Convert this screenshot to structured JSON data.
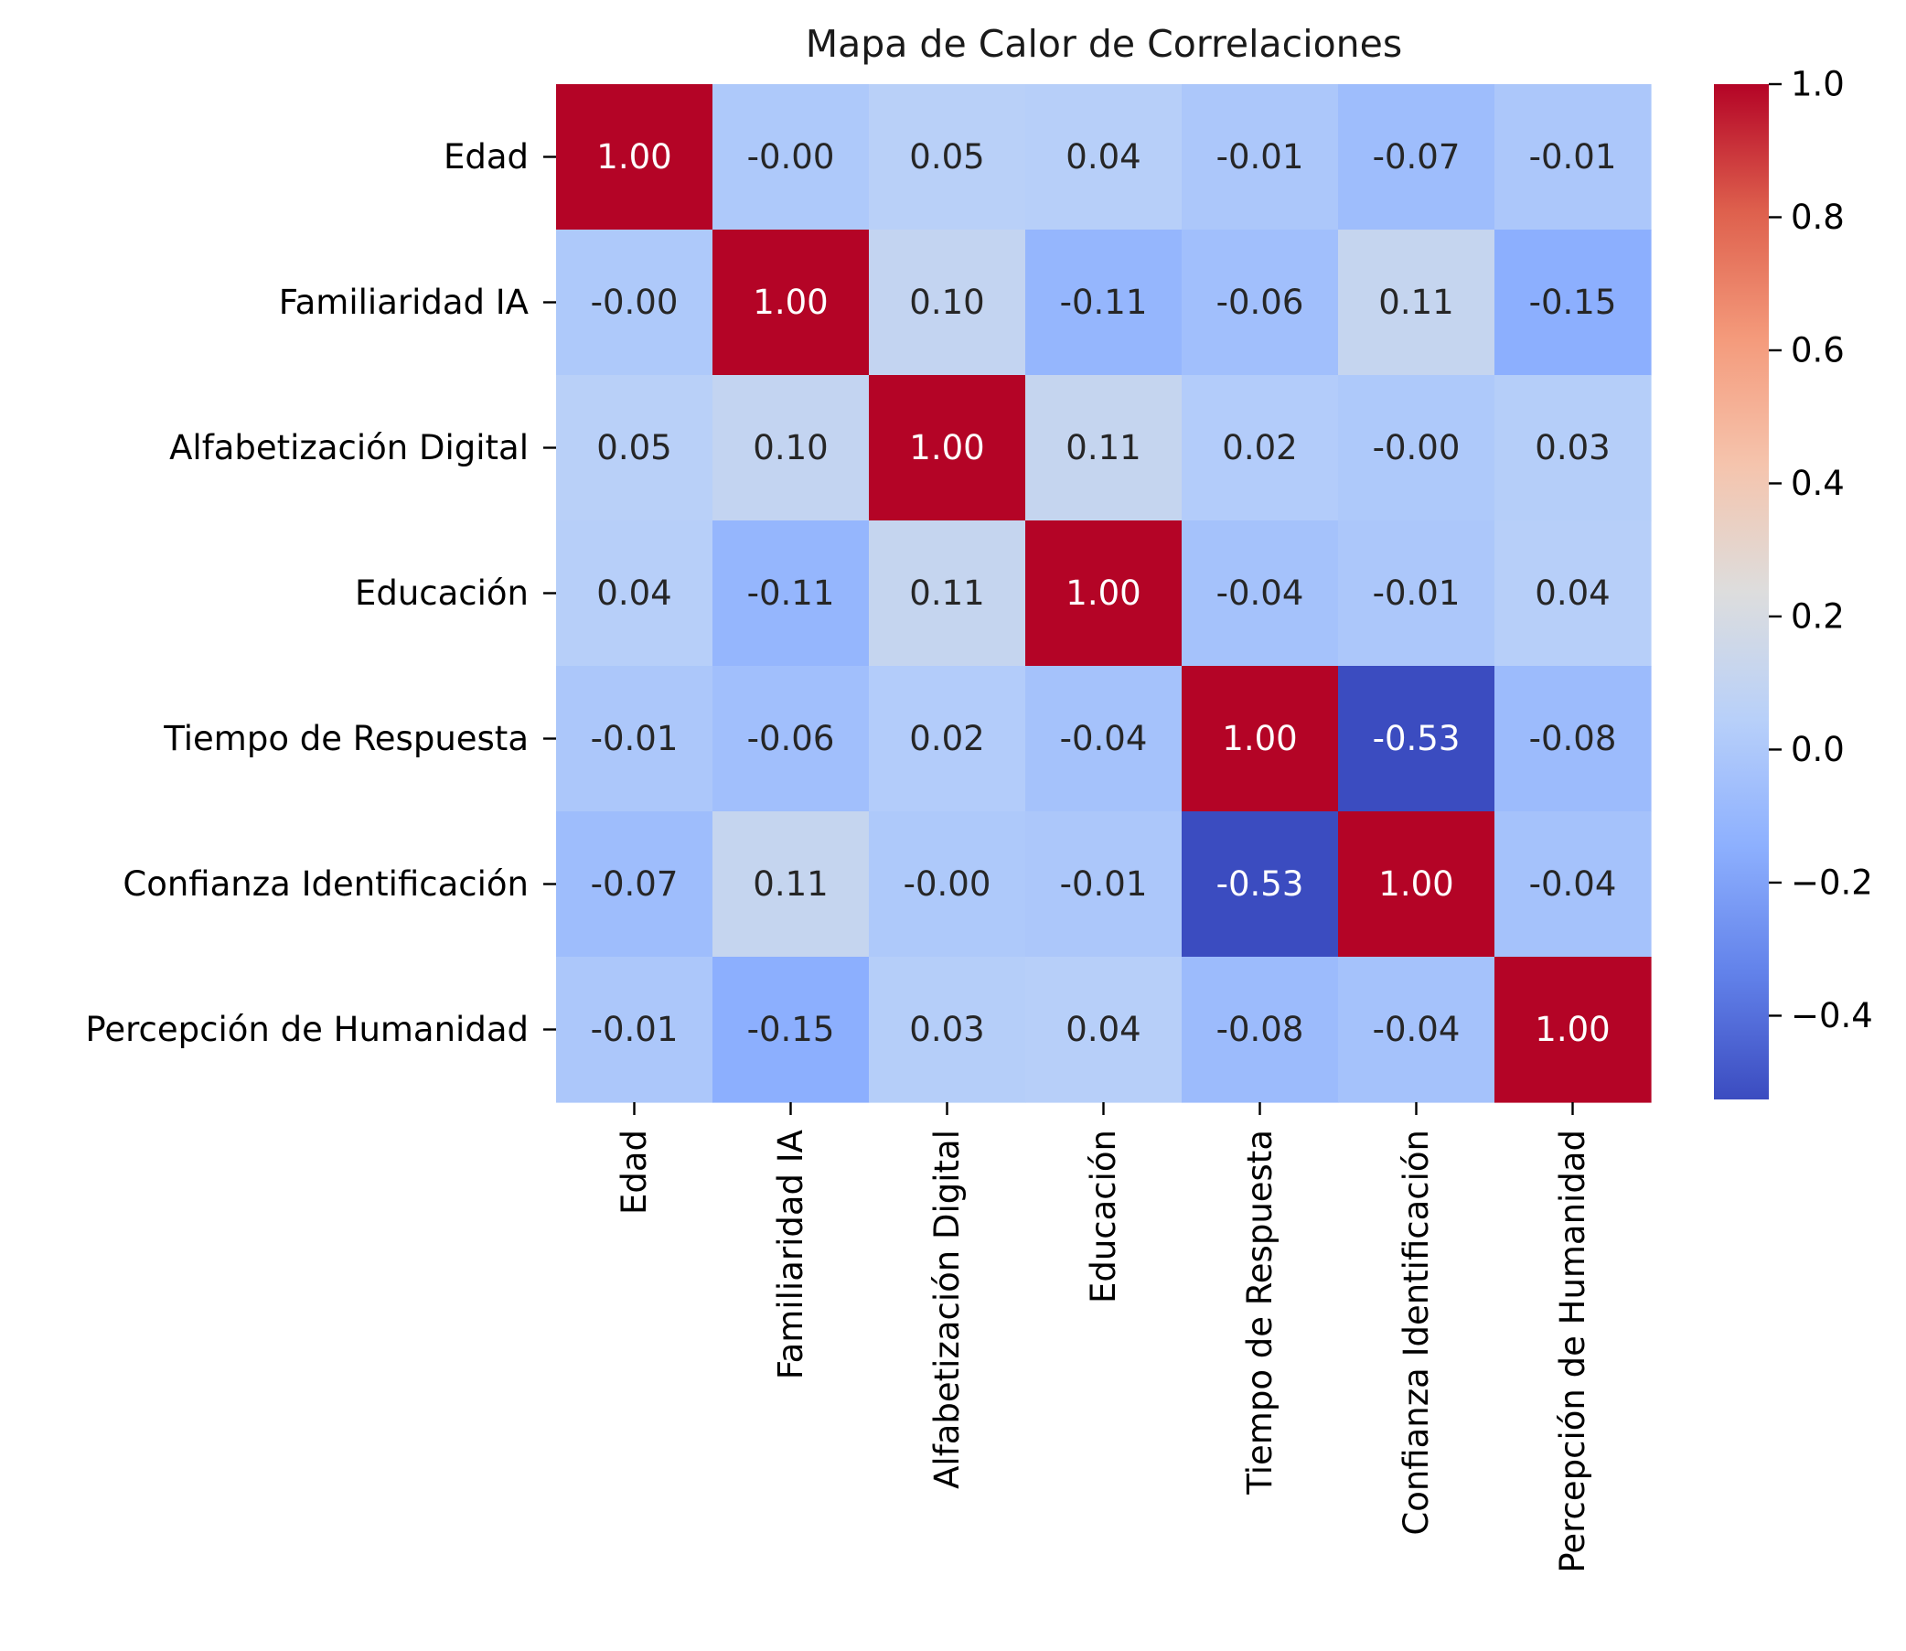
{
  "chart_data": {
    "type": "heatmap",
    "title": "Mapa de Calor de Correlaciones",
    "xlabel": "",
    "ylabel": "",
    "categories": [
      "Edad",
      "Familiaridad IA",
      "Alfabetización Digital",
      "Educación",
      "Tiempo de Respuesta",
      "Confianza Identificación",
      "Percepción de Humanidad"
    ],
    "values": [
      [
        1.0,
        -0.0,
        0.05,
        0.04,
        -0.01,
        -0.07,
        -0.01
      ],
      [
        -0.0,
        1.0,
        0.1,
        -0.11,
        -0.06,
        0.11,
        -0.15
      ],
      [
        0.05,
        0.1,
        1.0,
        0.11,
        0.02,
        -0.0,
        0.03
      ],
      [
        0.04,
        -0.11,
        0.11,
        1.0,
        -0.04,
        -0.01,
        0.04
      ],
      [
        -0.01,
        -0.06,
        0.02,
        -0.04,
        1.0,
        -0.53,
        -0.08
      ],
      [
        -0.07,
        0.11,
        -0.0,
        -0.01,
        -0.53,
        1.0,
        -0.04
      ],
      [
        -0.01,
        -0.15,
        0.03,
        0.04,
        -0.08,
        -0.04,
        1.0
      ]
    ],
    "cell_labels": [
      [
        "1.00",
        "-0.00",
        "0.05",
        "0.04",
        "-0.01",
        "-0.07",
        "-0.01"
      ],
      [
        "-0.00",
        "1.00",
        "0.10",
        "-0.11",
        "-0.06",
        "0.11",
        "-0.15"
      ],
      [
        "0.05",
        "0.10",
        "1.00",
        "0.11",
        "0.02",
        "-0.00",
        "0.03"
      ],
      [
        "0.04",
        "-0.11",
        "0.11",
        "1.00",
        "-0.04",
        "-0.01",
        "0.04"
      ],
      [
        "-0.01",
        "-0.06",
        "0.02",
        "-0.04",
        "1.00",
        "-0.53",
        "-0.08"
      ],
      [
        "-0.07",
        "0.11",
        "-0.00",
        "-0.01",
        "-0.53",
        "1.00",
        "-0.04"
      ],
      [
        "-0.01",
        "-0.15",
        "0.03",
        "0.04",
        "-0.08",
        "-0.04",
        "1.00"
      ]
    ],
    "colormap": "coolwarm",
    "colorbar": {
      "min": -0.53,
      "max": 1.0,
      "ticks": [
        1.0,
        0.8,
        0.6,
        0.4,
        0.2,
        0.0,
        -0.2,
        -0.4
      ],
      "tick_labels": [
        "1.0",
        "0.8",
        "0.6",
        "0.4",
        "0.2",
        "0.0",
        "−0.2",
        "−0.4"
      ]
    },
    "grid": false,
    "legend": "colorbar-right"
  }
}
